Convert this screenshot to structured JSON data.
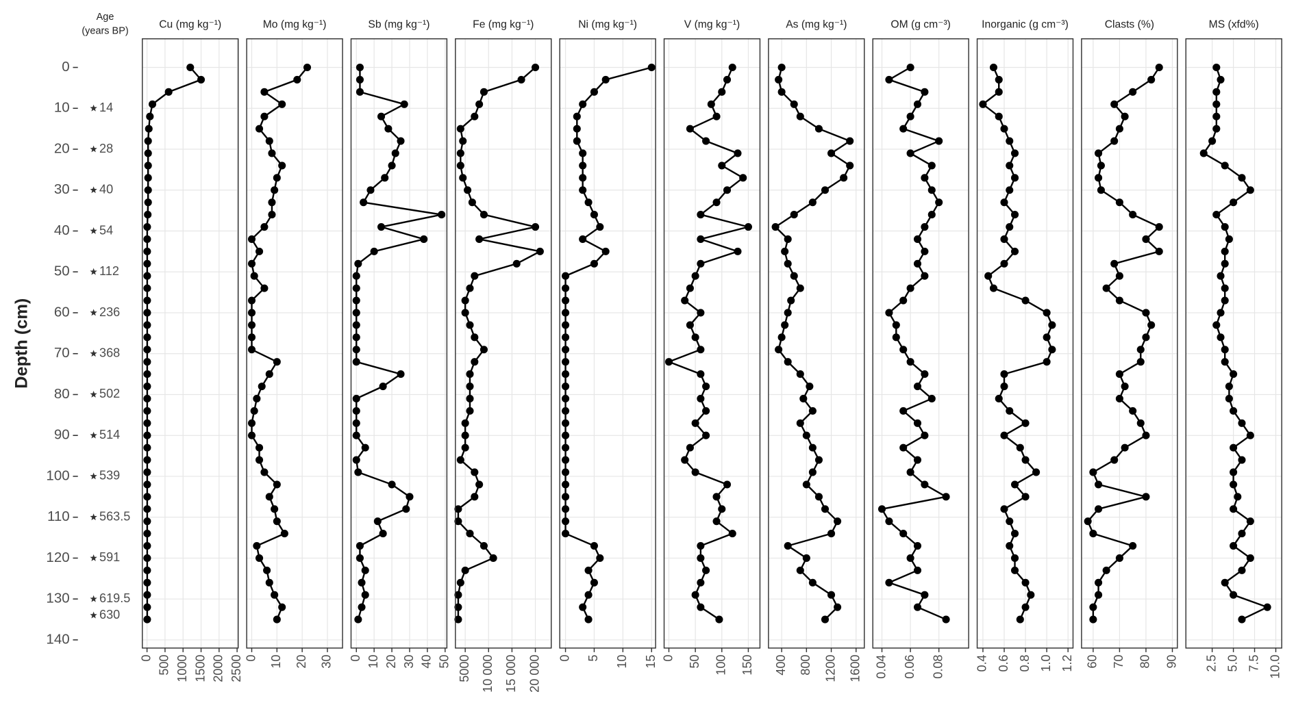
{
  "depth_axis": {
    "label": "Depth (cm)",
    "ylim": [
      -7,
      142
    ],
    "yticks": [
      0,
      10,
      20,
      30,
      40,
      50,
      60,
      70,
      80,
      90,
      100,
      110,
      120,
      130,
      140
    ]
  },
  "depth": [
    0,
    3,
    6,
    9,
    12,
    15,
    18,
    21,
    24,
    27,
    30,
    33,
    36,
    39,
    42,
    45,
    48,
    51,
    54,
    57,
    60,
    63,
    66,
    69,
    72,
    75,
    78,
    81,
    84,
    87,
    90,
    93,
    96,
    99,
    102,
    105,
    108,
    111,
    114,
    117,
    120,
    123,
    126,
    129,
    132,
    135
  ],
  "age": {
    "title": [
      "Age",
      "(years BP)"
    ],
    "depths": [
      10,
      20,
      30,
      40,
      50,
      60,
      70,
      80,
      90,
      100,
      110,
      120,
      130,
      134
    ],
    "labels": [
      "14",
      "28",
      "40",
      "54",
      "112",
      "236",
      "368",
      "502",
      "514",
      "539",
      "563.5",
      "591",
      "619.5",
      "630"
    ]
  },
  "chart_data": [
    {
      "type": "line",
      "title": "Cu (mg kg⁻¹)",
      "color": "#000000",
      "grid": true,
      "xlim": [
        -130,
        2530
      ],
      "xticks": [
        0,
        500,
        1000,
        1500,
        2000,
        2500
      ],
      "values": [
        1200,
        1500,
        600,
        150,
        80,
        50,
        30,
        30,
        30,
        30,
        30,
        30,
        20,
        5,
        5,
        5,
        5,
        5,
        5,
        5,
        5,
        5,
        5,
        5,
        5,
        5,
        5,
        5,
        5,
        5,
        5,
        5,
        5,
        5,
        5,
        5,
        5,
        5,
        5,
        5,
        5,
        5,
        5,
        5,
        5,
        5
      ]
    },
    {
      "type": "line",
      "title": "Mo (mg kg⁻¹)",
      "color": "#000000",
      "grid": true,
      "xlim": [
        -2,
        36
      ],
      "xticks": [
        0,
        10,
        20,
        30
      ],
      "values": [
        22,
        18,
        5,
        12,
        5,
        3,
        7,
        8,
        12,
        10,
        9,
        8,
        8,
        5,
        0,
        3,
        0,
        1,
        5,
        0,
        0,
        0,
        0,
        0,
        10,
        7,
        4,
        2,
        1,
        0,
        0,
        3,
        3,
        5,
        10,
        7,
        9,
        10,
        13,
        2,
        3,
        6,
        7,
        9,
        12,
        10
      ]
    },
    {
      "type": "line",
      "title": "Sb (mg kg⁻¹)",
      "color": "#000000",
      "grid": true,
      "xlim": [
        -3,
        51
      ],
      "xticks": [
        0,
        10,
        20,
        30,
        40,
        50
      ],
      "values": [
        2,
        2,
        2,
        27,
        14,
        18,
        25,
        22,
        20,
        16,
        8,
        4,
        48,
        14,
        38,
        10,
        1,
        0,
        0,
        0,
        0,
        0,
        0,
        0,
        0,
        25,
        15,
        0,
        0,
        0,
        0,
        5,
        0,
        1,
        20,
        30,
        28,
        12,
        15,
        2,
        2,
        5,
        3,
        5,
        3,
        1
      ]
    },
    {
      "type": "line",
      "title": "Fe (mg kg⁻¹)",
      "color": "#000000",
      "grid": true,
      "xlim": [
        2900,
        23400
      ],
      "xticks": [
        5000,
        {
          "value": 10000,
          "label": "10 000"
        },
        {
          "value": 15000,
          "label": "15 000"
        },
        {
          "value": 20000,
          "label": "20 000"
        }
      ],
      "values": [
        20000,
        17000,
        9000,
        8000,
        7000,
        4000,
        4500,
        4000,
        4000,
        4500,
        5500,
        6500,
        9000,
        20000,
        8000,
        21000,
        16000,
        7000,
        6000,
        5000,
        5000,
        6000,
        7000,
        9000,
        7000,
        6000,
        6000,
        6000,
        6000,
        5000,
        5000,
        5000,
        4000,
        7000,
        8000,
        7000,
        3500,
        3500,
        6000,
        9000,
        11000,
        5000,
        4000,
        3500,
        3500,
        3500
      ]
    },
    {
      "type": "line",
      "title": "Ni (mg kg⁻¹)",
      "color": "#000000",
      "grid": true,
      "xlim": [
        -1,
        15.7
      ],
      "xticks": [
        0,
        5,
        10,
        15
      ],
      "values": [
        15,
        7,
        5,
        3,
        2,
        2,
        2,
        3,
        3,
        3,
        3,
        4,
        5,
        6,
        3,
        7,
        5,
        0,
        0,
        0,
        0,
        0,
        0,
        0,
        0,
        0,
        0,
        0,
        0,
        0,
        0,
        0,
        0,
        0,
        0,
        0,
        0,
        0,
        0,
        5,
        6,
        4,
        5,
        4,
        3,
        4
      ]
    },
    {
      "type": "line",
      "title": "V (mg kg⁻¹)",
      "color": "#000000",
      "grid": true,
      "xlim": [
        -9,
        172
      ],
      "xticks": [
        0,
        50,
        100,
        150
      ],
      "values": [
        120,
        110,
        100,
        80,
        90,
        40,
        70,
        130,
        100,
        140,
        110,
        90,
        60,
        150,
        60,
        130,
        60,
        50,
        40,
        30,
        60,
        40,
        50,
        60,
        0,
        60,
        70,
        60,
        70,
        50,
        70,
        40,
        30,
        50,
        110,
        90,
        100,
        90,
        120,
        60,
        60,
        70,
        60,
        50,
        60,
        95
      ]
    },
    {
      "type": "line",
      "title": "As (mg kg⁻¹)",
      "color": "#000000",
      "grid": true,
      "xlim": [
        187,
        1733
      ],
      "xticks": [
        400,
        800,
        1200,
        1600
      ],
      "values": [
        400,
        350,
        400,
        600,
        700,
        1000,
        1500,
        1200,
        1500,
        1400,
        1100,
        900,
        600,
        300,
        500,
        450,
        500,
        600,
        700,
        550,
        500,
        450,
        400,
        350,
        500,
        700,
        850,
        750,
        900,
        700,
        800,
        900,
        1000,
        900,
        800,
        1000,
        1100,
        1300,
        1200,
        500,
        800,
        700,
        900,
        1200,
        1300,
        1100
      ]
    },
    {
      "type": "line",
      "title": "OM (g cm⁻³)",
      "color": "#000000",
      "grid": true,
      "xlim": [
        0.0336,
        0.1009
      ],
      "xticks": [
        0.04,
        0.06,
        0.08
      ],
      "values": [
        0.06,
        0.045,
        0.07,
        0.065,
        0.06,
        0.055,
        0.08,
        0.06,
        0.075,
        0.07,
        0.075,
        0.08,
        0.075,
        0.07,
        0.065,
        0.07,
        0.065,
        0.07,
        0.06,
        0.055,
        0.045,
        0.05,
        0.05,
        0.055,
        0.06,
        0.07,
        0.065,
        0.075,
        0.055,
        0.065,
        0.07,
        0.055,
        0.065,
        0.06,
        0.07,
        0.085,
        0.04,
        0.045,
        0.055,
        0.065,
        0.06,
        0.065,
        0.045,
        0.07,
        0.065,
        0.085
      ]
    },
    {
      "type": "line",
      "title": "Inorganic (g cm⁻³)",
      "color": "#000000",
      "grid": true,
      "xlim": [
        0.346,
        1.247
      ],
      "xticks": [
        0.4,
        0.6,
        0.8,
        {
          "value": 1,
          "label": "1.0"
        },
        1.2
      ],
      "values": [
        0.5,
        0.55,
        0.55,
        0.4,
        0.55,
        0.6,
        0.65,
        0.7,
        0.65,
        0.7,
        0.65,
        0.6,
        0.7,
        0.65,
        0.6,
        0.7,
        0.6,
        0.45,
        0.5,
        0.8,
        1.0,
        1.05,
        1.0,
        1.05,
        1.0,
        0.6,
        0.6,
        0.55,
        0.65,
        0.8,
        0.6,
        0.75,
        0.8,
        0.9,
        0.7,
        0.8,
        0.6,
        0.65,
        0.7,
        0.65,
        0.7,
        0.7,
        0.8,
        0.85,
        0.8,
        0.75
      ]
    },
    {
      "type": "line",
      "title": "Clasts (%)",
      "color": "#000000",
      "grid": true,
      "xlim": [
        55.6,
        91.9
      ],
      "xticks": [
        60,
        70,
        80,
        90
      ],
      "values": [
        85,
        82,
        75,
        68,
        72,
        70,
        68,
        62,
        63,
        62,
        63,
        70,
        75,
        85,
        80,
        85,
        68,
        70,
        65,
        70,
        80,
        82,
        80,
        78,
        78,
        70,
        72,
        70,
        75,
        78,
        80,
        72,
        68,
        60,
        62,
        80,
        62,
        58,
        60,
        75,
        70,
        65,
        62,
        62,
        60,
        60
      ]
    },
    {
      "type": "line",
      "title": "MS (xfd%)",
      "color": "#000000",
      "grid": true,
      "xlim": [
        -0.6,
        10.7
      ],
      "xticks": [
        2.5,
        {
          "value": 5,
          "label": "5.0"
        },
        7.5,
        {
          "value": 10,
          "label": "10.0"
        }
      ],
      "values": [
        3,
        3.5,
        3,
        3,
        3,
        3,
        2.5,
        1.5,
        4,
        6,
        7,
        5,
        3,
        4,
        4.5,
        4,
        4,
        3.5,
        4,
        4,
        3.5,
        3,
        3.5,
        4,
        4,
        5,
        4.5,
        4.5,
        5,
        6,
        7,
        5,
        6,
        5,
        5,
        5.5,
        5,
        7,
        6,
        5,
        7,
        6,
        4,
        5,
        9,
        6
      ]
    }
  ]
}
